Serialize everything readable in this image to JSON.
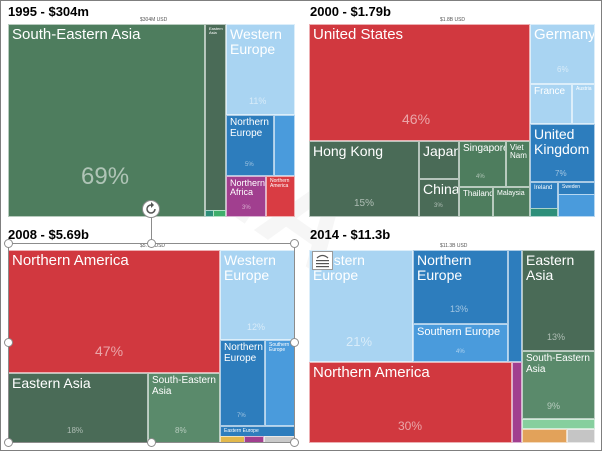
{
  "chart_data": [
    {
      "type": "treemap",
      "title": "1995 - $304m",
      "total_label": "$304M USD",
      "cells": [
        {
          "name": "South-Eastern Asia",
          "pct_label": "69%",
          "color": "#4e7d5e"
        },
        {
          "name": "Eastern Asia",
          "pct_label": "",
          "color": "#4a6b57"
        },
        {
          "name": "Western Europe",
          "pct_label": "11%",
          "color": "#a9d4f2"
        },
        {
          "name": "Northern Europe",
          "pct_label": "5%",
          "color": "#2d7dbd"
        },
        {
          "name": "",
          "pct_label": "",
          "color": "#4a9bdc"
        },
        {
          "name": "Northern Africa",
          "pct_label": "3%",
          "color": "#a13f8f"
        },
        {
          "name": "Northern America",
          "pct_label": "",
          "color": "#d93c43"
        }
      ]
    },
    {
      "type": "treemap",
      "title": "2000 - $1.79b",
      "total_label": "$1.8B USD",
      "cells": [
        {
          "name": "United States",
          "pct_label": "46%",
          "color": "#d1383f"
        },
        {
          "name": "Germany",
          "pct_label": "6%",
          "color": "#a9d4f2"
        },
        {
          "name": "France",
          "pct_label": "",
          "color": "#a9d4f2"
        },
        {
          "name": "Austria",
          "pct_label": "",
          "color": "#a9d4f2"
        },
        {
          "name": "United Kingdom",
          "pct_label": "7%",
          "color": "#2d7dbd"
        },
        {
          "name": "Ireland",
          "pct_label": "",
          "color": "#2d7dbd"
        },
        {
          "name": "Sweden",
          "pct_label": "",
          "color": "#2d7dbd"
        },
        {
          "name": "Hong Kong",
          "pct_label": "15%",
          "color": "#4a6b57"
        },
        {
          "name": "Japan",
          "pct_label": "",
          "color": "#4a6b57"
        },
        {
          "name": "China",
          "pct_label": "3%",
          "color": "#4a6b57"
        },
        {
          "name": "Singapore",
          "pct_label": "4%",
          "color": "#4e7d5e"
        },
        {
          "name": "Viet Nam",
          "pct_label": "",
          "color": "#4e7d5e"
        },
        {
          "name": "Thailand",
          "pct_label": "",
          "color": "#4e7d5e"
        },
        {
          "name": "Malaysia",
          "pct_label": "",
          "color": "#4e7d5e"
        }
      ]
    },
    {
      "type": "treemap",
      "title": "2008 - $5.69b",
      "total_label": "$5.7B USD",
      "cells": [
        {
          "name": "Northern America",
          "pct_label": "47%",
          "color": "#d1383f"
        },
        {
          "name": "Eastern Asia",
          "pct_label": "18%",
          "color": "#4a6b57"
        },
        {
          "name": "South-Eastern Asia",
          "pct_label": "8%",
          "color": "#5a8a6b"
        },
        {
          "name": "Western Europe",
          "pct_label": "12%",
          "color": "#a9d4f2"
        },
        {
          "name": "Northern Europe",
          "pct_label": "7%",
          "color": "#2d7dbd"
        },
        {
          "name": "Southern Europe",
          "pct_label": "",
          "color": "#4a9bdc"
        },
        {
          "name": "Eastern Europe",
          "pct_label": "",
          "color": "#2d7dbd"
        }
      ]
    },
    {
      "type": "treemap",
      "title": "2014 - $11.3b",
      "total_label": "$11.3B USD",
      "cells": [
        {
          "name": "Western Europe",
          "pct_label": "21%",
          "color": "#a9d4f2"
        },
        {
          "name": "Northern Europe",
          "pct_label": "13%",
          "color": "#2d7dbd"
        },
        {
          "name": "Southern Europe",
          "pct_label": "4%",
          "color": "#4a9bdc"
        },
        {
          "name": "Eastern Asia",
          "pct_label": "13%",
          "color": "#4a6b57"
        },
        {
          "name": "South-Eastern Asia",
          "pct_label": "9%",
          "color": "#5a8a6b"
        },
        {
          "name": "Northern America",
          "pct_label": "30%",
          "color": "#d1383f"
        }
      ]
    }
  ]
}
